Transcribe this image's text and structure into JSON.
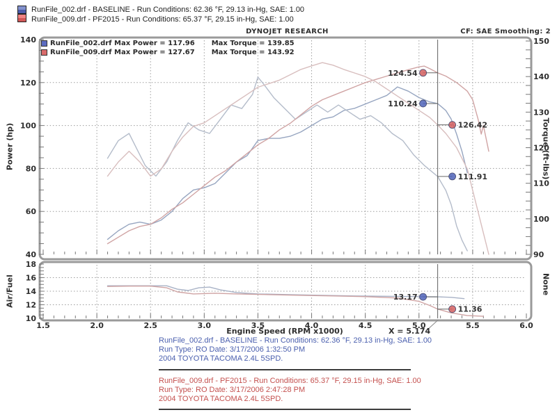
{
  "header": {
    "brand": "DYNOJET RESEARCH",
    "cf_smoothing": "CF: SAE  Smoothing: 2"
  },
  "top_legend": [
    {
      "label": "RunFile_002.drf - BASELINE  -  Run Conditions: 62.36 °F, 29.13 in-Hg, SAE: 1.00",
      "color_top": "#8291cd",
      "color_bottom": "#4d5cab"
    },
    {
      "label": "RunFile_009.drf - PF2015  -  Run Conditions: 65.37 °F, 29.15 in-Hg, SAE: 1.00",
      "color_top": "#ef8383",
      "color_bottom": "#d15757"
    }
  ],
  "chart_legend": [
    {
      "file_stats": "RunFile_002.drf Max Power = 117.96",
      "torque_stats": "Max Torque = 139.85",
      "color": "#5c6cc0"
    },
    {
      "file_stats": "RunFile_009.drf Max Power = 127.67",
      "torque_stats": "Max Torque = 143.92",
      "color": "#d96b6b"
    }
  ],
  "axes_titles": {
    "power": "Power (hp)",
    "torque": "Torque (ft-lbs)",
    "af": "Air/Fuel",
    "af_right": "None",
    "x": "Engine Speed (RPM x1000)",
    "cursor_readout": "X = 5.174"
  },
  "footer_blocks": [
    {
      "color": "#4a5fae",
      "line1": "RunFile_002.drf - BASELINE  -  Run Conditions: 62.36 °F, 29.13 in-Hg, SAE: 1.00",
      "line2": "Run Type: RO  Date: 3/17/2006 1:32:50 PM",
      "line3": "2004 TOYOTA TACOMA 2.4L 5SPD."
    },
    {
      "color": "#c4504e",
      "line1": "RunFile_009.drf - PF2015  -  Run Conditions: 65.37 °F, 29.15 in-Hg, SAE: 1.00",
      "line2": "Run Type: RO  Date: 3/17/2006 2:47:28 PM",
      "line3": "2004 TOYOTA TACOMA 2.4L 5SPD."
    }
  ],
  "chart_data": {
    "type": "line",
    "title": "DYNOJET RESEARCH",
    "xlabel": "Engine Speed (RPM x1000)",
    "x_axis": {
      "min": 1.5,
      "max": 6.0,
      "major_ticks": [
        1.5,
        2.0,
        2.5,
        3.0,
        3.5,
        4.0,
        4.5,
        5.0,
        5.5,
        6.0
      ],
      "minor_step": 0.1
    },
    "main_chart": {
      "left_axis": {
        "label": "Power (hp)",
        "min": 40,
        "max": 140,
        "ticks": [
          140,
          120,
          100,
          80,
          60,
          40
        ],
        "grid_values": [
          120,
          100,
          80,
          60
        ],
        "minor_step": 5
      },
      "right_axis": {
        "label": "Torque (ft-lbs)",
        "min": 90,
        "max": 150,
        "ticks": [
          150,
          140,
          130,
          120,
          110,
          100,
          90
        ],
        "minor_step": 2.5
      },
      "series": [
        {
          "name": "RunFile_002 Power (hp)",
          "axis": "power",
          "color": "#96a5c0",
          "max": 117.96,
          "points": [
            [
              2.1,
              47
            ],
            [
              2.2,
              51
            ],
            [
              2.3,
              54
            ],
            [
              2.4,
              55
            ],
            [
              2.5,
              54
            ],
            [
              2.6,
              56
            ],
            [
              2.7,
              60
            ],
            [
              2.8,
              66
            ],
            [
              2.9,
              70
            ],
            [
              3.0,
              71
            ],
            [
              3.1,
              73
            ],
            [
              3.2,
              78
            ],
            [
              3.3,
              83
            ],
            [
              3.4,
              86
            ],
            [
              3.5,
              93
            ],
            [
              3.6,
              94
            ],
            [
              3.7,
              94
            ],
            [
              3.8,
              95
            ],
            [
              3.9,
              97
            ],
            [
              4.0,
              100
            ],
            [
              4.1,
              103
            ],
            [
              4.2,
              104
            ],
            [
              4.3,
              107
            ],
            [
              4.4,
              108
            ],
            [
              4.5,
              110
            ],
            [
              4.6,
              112
            ],
            [
              4.7,
              114
            ],
            [
              4.8,
              117.96
            ],
            [
              4.9,
              116
            ],
            [
              5.0,
              113
            ],
            [
              5.1,
              111
            ],
            [
              5.174,
              110.24
            ],
            [
              5.25,
              107
            ],
            [
              5.3,
              103
            ],
            [
              5.35,
              96
            ],
            [
              5.4,
              88
            ],
            [
              5.45,
              78
            ]
          ]
        },
        {
          "name": "RunFile_002 Torque (ft-lbs)",
          "axis": "torque",
          "color": "#b4bcca",
          "max": 139.85,
          "points": [
            [
              2.1,
              117
            ],
            [
              2.2,
              122
            ],
            [
              2.3,
              124
            ],
            [
              2.35,
              121
            ],
            [
              2.45,
              115
            ],
            [
              2.55,
              112
            ],
            [
              2.65,
              116
            ],
            [
              2.75,
              122
            ],
            [
              2.85,
              127
            ],
            [
              2.95,
              125
            ],
            [
              3.05,
              124
            ],
            [
              3.15,
              128
            ],
            [
              3.25,
              132
            ],
            [
              3.35,
              131
            ],
            [
              3.45,
              135
            ],
            [
              3.5,
              139.85
            ],
            [
              3.55,
              138
            ],
            [
              3.65,
              134
            ],
            [
              3.75,
              131
            ],
            [
              3.85,
              128
            ],
            [
              3.95,
              130
            ],
            [
              4.05,
              132
            ],
            [
              4.15,
              130
            ],
            [
              4.25,
              132
            ],
            [
              4.35,
              130
            ],
            [
              4.45,
              128
            ],
            [
              4.55,
              129
            ],
            [
              4.65,
              127
            ],
            [
              4.75,
              124
            ],
            [
              4.85,
              122
            ],
            [
              4.95,
              118
            ],
            [
              5.05,
              115
            ],
            [
              5.174,
              111.91
            ],
            [
              5.25,
              108
            ],
            [
              5.3,
              104
            ],
            [
              5.35,
              98
            ],
            [
              5.4,
              94
            ],
            [
              5.45,
              91
            ]
          ]
        },
        {
          "name": "RunFile_009 Power (hp)",
          "axis": "power",
          "color": "#d0a4a4",
          "max": 127.67,
          "points": [
            [
              2.1,
              45
            ],
            [
              2.2,
              48
            ],
            [
              2.3,
              51
            ],
            [
              2.4,
              53
            ],
            [
              2.5,
              54
            ],
            [
              2.6,
              57
            ],
            [
              2.7,
              61
            ],
            [
              2.8,
              64
            ],
            [
              2.9,
              68
            ],
            [
              3.0,
              72
            ],
            [
              3.1,
              76
            ],
            [
              3.2,
              79
            ],
            [
              3.3,
              83
            ],
            [
              3.4,
              87
            ],
            [
              3.5,
              91
            ],
            [
              3.6,
              94
            ],
            [
              3.7,
              98
            ],
            [
              3.8,
              101
            ],
            [
              3.9,
              105
            ],
            [
              4.0,
              109
            ],
            [
              4.1,
              112
            ],
            [
              4.2,
              114
            ],
            [
              4.3,
              116
            ],
            [
              4.4,
              118
            ],
            [
              4.5,
              120
            ],
            [
              4.6,
              121.5
            ],
            [
              4.7,
              123
            ],
            [
              4.8,
              124.5
            ],
            [
              4.9,
              126
            ],
            [
              5.0,
              127.3
            ],
            [
              5.05,
              127.67
            ],
            [
              5.1,
              126.5
            ],
            [
              5.174,
              124.54
            ],
            [
              5.25,
              123
            ],
            [
              5.35,
              120
            ],
            [
              5.45,
              116
            ],
            [
              5.5,
              112
            ],
            [
              5.55,
              103
            ],
            [
              5.58,
              96
            ],
            [
              5.6,
              100
            ],
            [
              5.65,
              88
            ]
          ]
        },
        {
          "name": "RunFile_009 Torque (ft-lbs)",
          "axis": "torque",
          "color": "#d8bebe",
          "max": 143.92,
          "points": [
            [
              2.1,
              112
            ],
            [
              2.2,
              116
            ],
            [
              2.3,
              119
            ],
            [
              2.4,
              116
            ],
            [
              2.5,
              112
            ],
            [
              2.6,
              114
            ],
            [
              2.7,
              119
            ],
            [
              2.8,
              123
            ],
            [
              2.9,
              126
            ],
            [
              3.0,
              127
            ],
            [
              3.1,
              129
            ],
            [
              3.2,
              131
            ],
            [
              3.3,
              133
            ],
            [
              3.4,
              135
            ],
            [
              3.5,
              137
            ],
            [
              3.6,
              138
            ],
            [
              3.7,
              139
            ],
            [
              3.8,
              140.5
            ],
            [
              3.9,
              142
            ],
            [
              4.0,
              143
            ],
            [
              4.1,
              143.92
            ],
            [
              4.2,
              143.2
            ],
            [
              4.3,
              142
            ],
            [
              4.4,
              141
            ],
            [
              4.5,
              140
            ],
            [
              4.6,
              138.5
            ],
            [
              4.7,
              136.5
            ],
            [
              4.8,
              134.5
            ],
            [
              4.9,
              132.5
            ],
            [
              5.0,
              130.5
            ],
            [
              5.1,
              128.5
            ],
            [
              5.174,
              126.42
            ],
            [
              5.25,
              124
            ],
            [
              5.35,
              120
            ],
            [
              5.45,
              114
            ],
            [
              5.55,
              102
            ],
            [
              5.6,
              96
            ],
            [
              5.65,
              90
            ]
          ]
        }
      ]
    },
    "af_chart": {
      "left_axis": {
        "label": "Air/Fuel",
        "min": 10,
        "max": 18,
        "ticks": [
          18,
          16,
          14,
          12,
          10
        ],
        "grid_values": [
          16,
          14,
          12
        ],
        "minor_step": 0.5
      },
      "right_label": "None",
      "series": [
        {
          "name": "RunFile_002 Air/Fuel",
          "axis": "af",
          "color": "#a8b2c6",
          "points": [
            [
              2.1,
              14.8
            ],
            [
              2.3,
              14.8
            ],
            [
              2.5,
              14.8
            ],
            [
              2.65,
              14.8
            ],
            [
              2.75,
              14.3
            ],
            [
              2.85,
              14.1
            ],
            [
              2.95,
              14.5
            ],
            [
              3.05,
              14.6
            ],
            [
              3.15,
              14.2
            ],
            [
              3.3,
              13.8
            ],
            [
              3.5,
              13.6
            ],
            [
              3.8,
              13.5
            ],
            [
              4.1,
              13.4
            ],
            [
              4.4,
              13.3
            ],
            [
              4.7,
              13.25
            ],
            [
              5.0,
              13.2
            ],
            [
              5.174,
              13.17
            ],
            [
              5.3,
              13.1
            ],
            [
              5.42,
              12.9
            ]
          ]
        },
        {
          "name": "RunFile_009 Air/Fuel",
          "axis": "af",
          "color": "#cfa3a3",
          "points": [
            [
              2.1,
              14.7
            ],
            [
              2.3,
              14.75
            ],
            [
              2.5,
              14.75
            ],
            [
              2.65,
              14.5
            ],
            [
              2.75,
              13.9
            ],
            [
              2.9,
              13.6
            ],
            [
              3.1,
              13.7
            ],
            [
              3.3,
              13.6
            ],
            [
              3.6,
              13.5
            ],
            [
              3.9,
              13.4
            ],
            [
              4.2,
              13.3
            ],
            [
              4.5,
              13.2
            ],
            [
              4.8,
              13.0
            ],
            [
              5.0,
              12.5
            ],
            [
              5.1,
              11.9
            ],
            [
              5.174,
              11.36
            ],
            [
              5.3,
              10.8
            ],
            [
              5.45,
              10.4
            ],
            [
              5.6,
              10.3
            ]
          ]
        }
      ]
    },
    "cursor": {
      "x": 5.174,
      "readout": "X = 5.174",
      "markers": [
        {
          "label": "124.54",
          "value": 124.54,
          "scale": "power",
          "side": "left",
          "color": "#d45f5f"
        },
        {
          "label": "110.24",
          "value": 110.24,
          "scale": "power",
          "side": "left",
          "color": "#4f63b8"
        },
        {
          "label": "126.42",
          "value": 126.42,
          "scale": "torque",
          "side": "right",
          "color": "#d45f5f"
        },
        {
          "label": "111.91",
          "value": 111.91,
          "scale": "torque",
          "side": "right",
          "color": "#4f63b8"
        },
        {
          "label": "13.17",
          "value": 13.17,
          "scale": "af",
          "side": "left",
          "color": "#4f63b8"
        },
        {
          "label": "11.36",
          "value": 11.36,
          "scale": "af",
          "side": "right",
          "color": "#d45f5f"
        }
      ]
    },
    "legend_position": "top-left-inside",
    "grid": "dotted"
  }
}
